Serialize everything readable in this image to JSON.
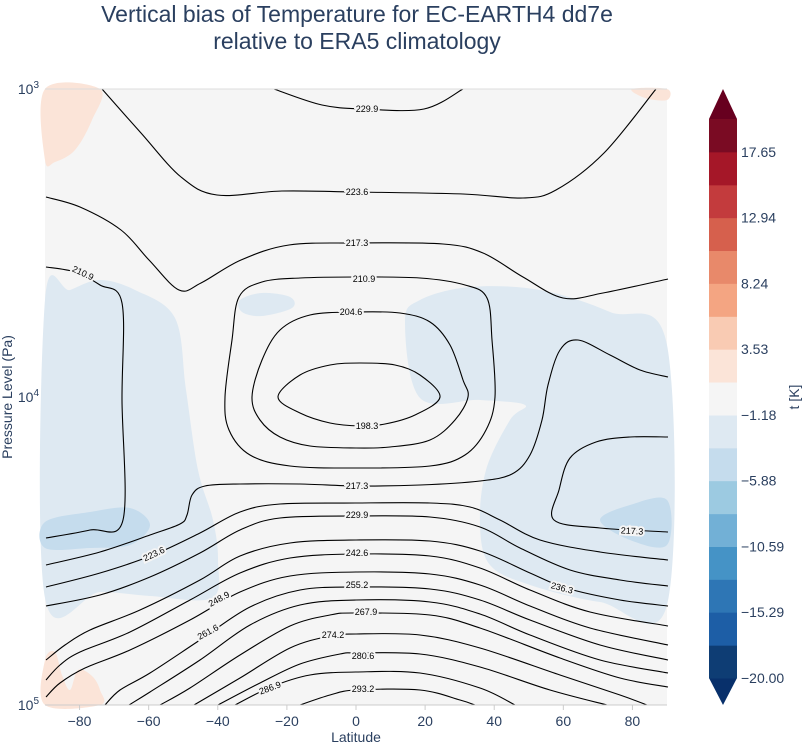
{
  "chart_data": {
    "type": "contour",
    "title": [
      "Vertical bias of Temperature for EC-EARTH4 dd7e",
      "relative to ERA5 climatology"
    ],
    "xlabel": "Latitude",
    "ylabel": "Pressure Level (Pa)",
    "xlim": [
      -90,
      90
    ],
    "ylim": [
      1000,
      100000
    ],
    "yscale": "log",
    "x_ticks": [
      -80,
      -60,
      -40,
      -20,
      0,
      20,
      40,
      60,
      80
    ],
    "x_tick_labels": [
      "−80",
      "−60",
      "−40",
      "−20",
      "0",
      "20",
      "40",
      "60",
      "80"
    ],
    "y_ticks": [
      {
        "base": "10",
        "exp": "3"
      },
      {
        "base": "10",
        "exp": "4"
      },
      {
        "base": "10",
        "exp": "5"
      }
    ],
    "grid": false,
    "colorbar": {
      "title": "t [K]",
      "range": [
        -20,
        20
      ],
      "levels": [
        -20,
        -17.65,
        -15.29,
        -12.94,
        -10.59,
        -8.24,
        -5.88,
        -3.53,
        -1.18,
        1.18,
        3.53,
        5.88,
        8.24,
        10.59,
        12.94,
        15.29,
        17.65,
        20
      ],
      "colors": [
        "#0e3d74",
        "#1d5ea6",
        "#2e76b5",
        "#4593c6",
        "#72b0d6",
        "#9ccae1",
        "#c5dced",
        "#dee9f2",
        "#f5f5f5",
        "#fbe4d8",
        "#f9cbb3",
        "#f4a582",
        "#e8896a",
        "#d6604d",
        "#c33b3d",
        "#a51728",
        "#7a0b23"
      ],
      "extend_low_color": "#08306b",
      "extend_high_color": "#67001f",
      "tick_labels": [
        "−20.00",
        "−15.29",
        "−10.59",
        "−5.88",
        "−1.18",
        "3.53",
        "8.24",
        "12.94",
        "17.65"
      ],
      "tick_values": [
        -20,
        -15.29,
        -10.59,
        -5.88,
        -1.18,
        3.53,
        8.24,
        12.94,
        17.65
      ]
    },
    "contour_levels": [
      "198.3",
      "204.6",
      "210.9",
      "217.3",
      "223.6",
      "229.9",
      "236.3",
      "242.6",
      "248.9",
      "255.2",
      "261.6",
      "267.9",
      "274.2",
      "280.6",
      "286.9",
      "293.2"
    ],
    "contour_color": "#000000"
  }
}
